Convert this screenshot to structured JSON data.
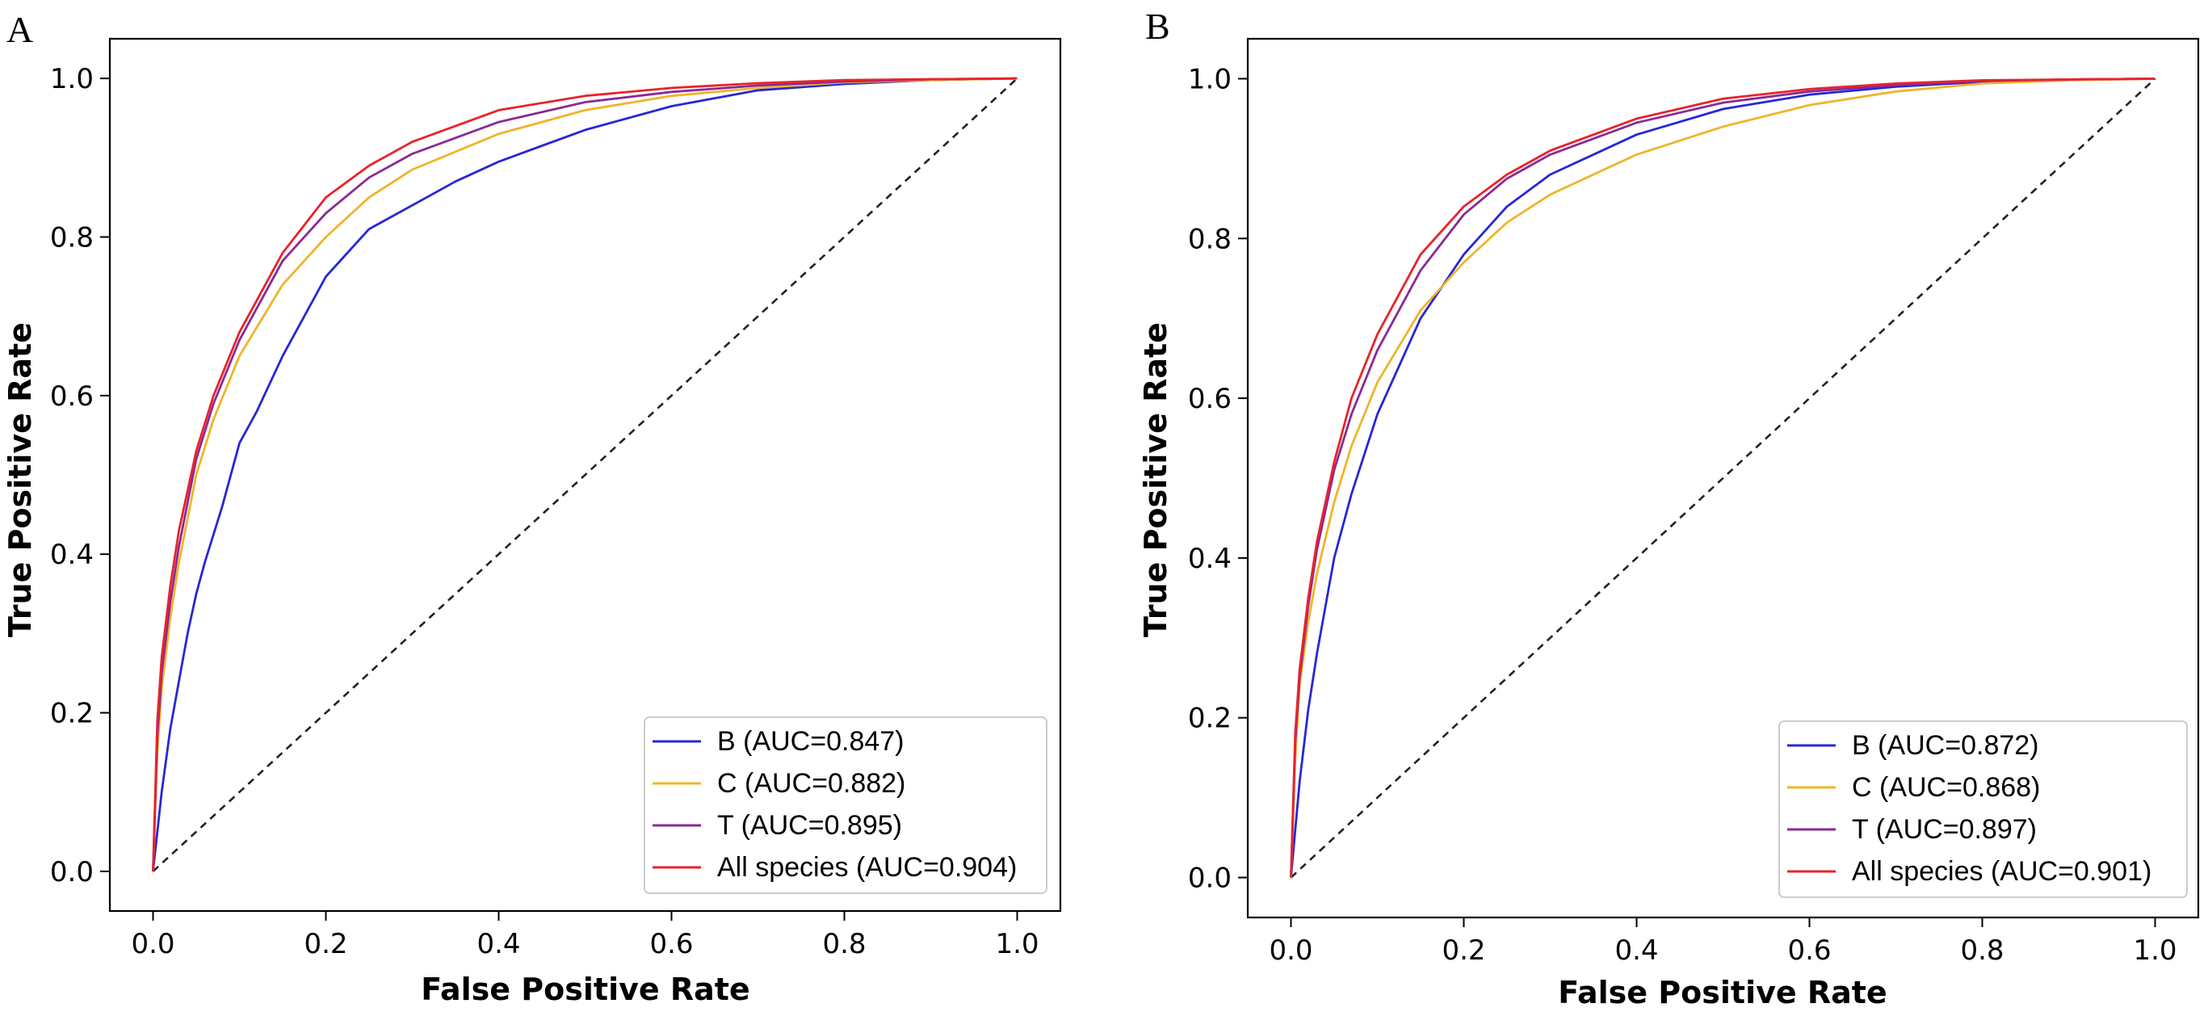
{
  "figure": {
    "panel_labels": [
      "A",
      "B"
    ]
  },
  "chart_data": [
    {
      "panel": "A",
      "type": "line",
      "xlabel": "False Positive Rate",
      "ylabel": "True Positive Rate",
      "xlim": [
        -0.05,
        1.05
      ],
      "ylim": [
        -0.05,
        1.05
      ],
      "xticks": [
        0.0,
        0.2,
        0.4,
        0.6,
        0.8,
        1.0
      ],
      "yticks": [
        0.0,
        0.2,
        0.4,
        0.6,
        0.8,
        1.0
      ],
      "tick_labels_x": [
        "0.0",
        "0.2",
        "0.4",
        "0.6",
        "0.8",
        "1.0"
      ],
      "tick_labels_y": [
        "0.0",
        "0.2",
        "0.4",
        "0.6",
        "0.8",
        "1.0"
      ],
      "legend_position": "lower-right",
      "series": [
        {
          "name": "B",
          "auc_label": "(AUC=0.847)",
          "color": "#2727d6",
          "x": [
            0,
            0.01,
            0.02,
            0.03,
            0.04,
            0.05,
            0.06,
            0.08,
            0.1,
            0.12,
            0.15,
            0.2,
            0.25,
            0.3,
            0.35,
            0.4,
            0.45,
            0.5,
            0.6,
            0.7,
            0.8,
            0.9,
            1.0
          ],
          "y": [
            0,
            0.1,
            0.18,
            0.24,
            0.3,
            0.35,
            0.39,
            0.46,
            0.54,
            0.58,
            0.65,
            0.75,
            0.81,
            0.84,
            0.87,
            0.895,
            0.915,
            0.935,
            0.965,
            0.985,
            0.993,
            0.998,
            1.0
          ]
        },
        {
          "name": "C",
          "auc_label": "(AUC=0.882)",
          "color": "#f0b429",
          "x": [
            0,
            0.005,
            0.01,
            0.02,
            0.03,
            0.05,
            0.07,
            0.1,
            0.15,
            0.2,
            0.25,
            0.3,
            0.4,
            0.5,
            0.6,
            0.7,
            0.8,
            0.9,
            1.0
          ],
          "y": [
            0,
            0.15,
            0.23,
            0.32,
            0.39,
            0.5,
            0.57,
            0.65,
            0.74,
            0.8,
            0.85,
            0.885,
            0.93,
            0.96,
            0.978,
            0.988,
            0.995,
            0.998,
            1.0
          ]
        },
        {
          "name": "T",
          "auc_label": "(AUC=0.895)",
          "color": "#8a2a96",
          "x": [
            0,
            0.005,
            0.01,
            0.02,
            0.03,
            0.05,
            0.07,
            0.1,
            0.15,
            0.2,
            0.25,
            0.3,
            0.4,
            0.5,
            0.6,
            0.7,
            0.8,
            0.9,
            1.0
          ],
          "y": [
            0,
            0.17,
            0.25,
            0.34,
            0.41,
            0.52,
            0.59,
            0.67,
            0.77,
            0.83,
            0.875,
            0.905,
            0.945,
            0.97,
            0.983,
            0.991,
            0.996,
            0.999,
            1.0
          ]
        },
        {
          "name": "All species",
          "auc_label": "(AUC=0.904)",
          "color": "#e8232b",
          "x": [
            0,
            0.005,
            0.01,
            0.02,
            0.03,
            0.05,
            0.07,
            0.1,
            0.15,
            0.2,
            0.25,
            0.3,
            0.4,
            0.5,
            0.6,
            0.7,
            0.8,
            0.9,
            1.0
          ],
          "y": [
            0,
            0.19,
            0.27,
            0.36,
            0.43,
            0.53,
            0.6,
            0.68,
            0.78,
            0.85,
            0.89,
            0.92,
            0.96,
            0.978,
            0.988,
            0.994,
            0.998,
            0.999,
            1.0
          ]
        }
      ]
    },
    {
      "panel": "B",
      "type": "line",
      "xlabel": "False Positive Rate",
      "ylabel": "True Positive Rate",
      "xlim": [
        -0.05,
        1.05
      ],
      "ylim": [
        -0.05,
        1.05
      ],
      "xticks": [
        0.0,
        0.2,
        0.4,
        0.6,
        0.8,
        1.0
      ],
      "yticks": [
        0.0,
        0.2,
        0.4,
        0.6,
        0.8,
        1.0
      ],
      "tick_labels_x": [
        "0.0",
        "0.2",
        "0.4",
        "0.6",
        "0.8",
        "1.0"
      ],
      "tick_labels_y": [
        "0.0",
        "0.2",
        "0.4",
        "0.6",
        "0.8",
        "1.0"
      ],
      "legend_position": "lower-right",
      "series": [
        {
          "name": "B",
          "auc_label": "(AUC=0.872)",
          "color": "#2727d6",
          "x": [
            0,
            0.01,
            0.02,
            0.03,
            0.05,
            0.07,
            0.1,
            0.15,
            0.2,
            0.25,
            0.3,
            0.4,
            0.5,
            0.6,
            0.7,
            0.8,
            0.9,
            1.0
          ],
          "y": [
            0,
            0.12,
            0.21,
            0.28,
            0.4,
            0.48,
            0.58,
            0.7,
            0.78,
            0.84,
            0.88,
            0.93,
            0.962,
            0.98,
            0.99,
            0.996,
            0.999,
            1.0
          ]
        },
        {
          "name": "C",
          "auc_label": "(AUC=0.868)",
          "color": "#f0b429",
          "x": [
            0,
            0.005,
            0.01,
            0.02,
            0.03,
            0.05,
            0.07,
            0.1,
            0.15,
            0.2,
            0.25,
            0.3,
            0.4,
            0.5,
            0.6,
            0.7,
            0.8,
            0.9,
            1.0
          ],
          "y": [
            0,
            0.15,
            0.24,
            0.32,
            0.38,
            0.47,
            0.54,
            0.62,
            0.71,
            0.77,
            0.82,
            0.855,
            0.905,
            0.94,
            0.967,
            0.984,
            0.994,
            0.998,
            1.0
          ]
        },
        {
          "name": "T",
          "auc_label": "(AUC=0.897)",
          "color": "#8a2a96",
          "x": [
            0,
            0.005,
            0.01,
            0.02,
            0.03,
            0.05,
            0.07,
            0.1,
            0.15,
            0.2,
            0.25,
            0.3,
            0.4,
            0.5,
            0.6,
            0.7,
            0.8,
            0.9,
            1.0
          ],
          "y": [
            0,
            0.17,
            0.25,
            0.34,
            0.41,
            0.51,
            0.58,
            0.66,
            0.76,
            0.83,
            0.875,
            0.905,
            0.945,
            0.97,
            0.984,
            0.992,
            0.997,
            0.999,
            1.0
          ]
        },
        {
          "name": "All species",
          "auc_label": "(AUC=0.901)",
          "color": "#e8232b",
          "x": [
            0,
            0.005,
            0.01,
            0.02,
            0.03,
            0.05,
            0.07,
            0.1,
            0.15,
            0.2,
            0.25,
            0.3,
            0.4,
            0.5,
            0.6,
            0.7,
            0.8,
            0.9,
            1.0
          ],
          "y": [
            0,
            0.18,
            0.26,
            0.35,
            0.42,
            0.52,
            0.6,
            0.68,
            0.78,
            0.84,
            0.88,
            0.91,
            0.95,
            0.975,
            0.987,
            0.994,
            0.998,
            0.999,
            1.0
          ]
        }
      ]
    }
  ]
}
